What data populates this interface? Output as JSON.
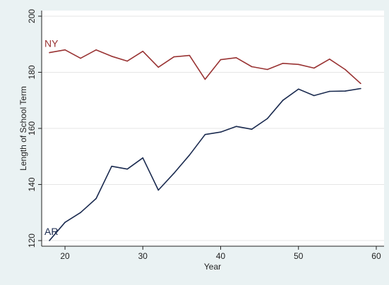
{
  "chart_data": {
    "type": "line",
    "title": "",
    "xlabel": "Year",
    "ylabel": "Length of School Term",
    "xlim": [
      17,
      61
    ],
    "ylim": [
      118,
      202
    ],
    "xticks": [
      20,
      30,
      40,
      50,
      60
    ],
    "yticks": [
      120,
      140,
      160,
      180,
      200
    ],
    "grid": true,
    "legend": "none",
    "colors": {
      "NY": "#993333",
      "AR": "#1a2a4f",
      "gridline": "#e6e6e6",
      "background": "#eaf2f3",
      "plot_background": "#ffffff"
    },
    "series": [
      {
        "name": "NY",
        "x": [
          18,
          20,
          22,
          24,
          26,
          28,
          30,
          32,
          34,
          36,
          38,
          40,
          42,
          44,
          46,
          48,
          50,
          52,
          54,
          56,
          58
        ],
        "y": [
          187,
          188,
          185,
          188,
          185.7,
          184,
          187.5,
          181.8,
          185.5,
          186,
          177.5,
          184.5,
          185.2,
          182,
          181,
          183.2,
          182.8,
          181.5,
          184.7,
          181,
          176
        ]
      },
      {
        "name": "AR",
        "x": [
          18,
          20,
          22,
          24,
          26,
          28,
          30,
          32,
          34,
          36,
          38,
          40,
          42,
          44,
          46,
          48,
          50,
          52,
          54,
          56,
          58
        ],
        "y": [
          120,
          126.5,
          130,
          135,
          146.5,
          145.5,
          149.5,
          138,
          144,
          150.5,
          157.8,
          158.7,
          160.7,
          159.7,
          163.5,
          170,
          174,
          171.7,
          173.2,
          173.3,
          174.2
        ]
      }
    ]
  }
}
